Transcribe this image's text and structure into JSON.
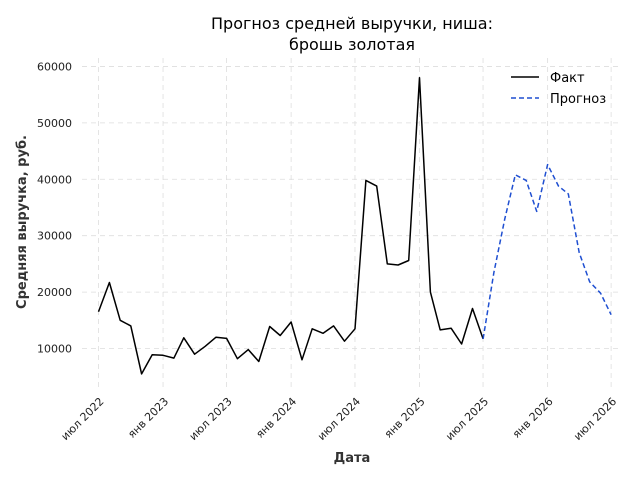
{
  "chart_data": {
    "type": "line",
    "title_lines": [
      "Прогноз средней выручки, ниша:",
      "брошь золотая"
    ],
    "xlabel": "Дата",
    "ylabel": "Средняя выручка, руб.",
    "ylim": [
      3000,
      61500
    ],
    "xlim": [
      "2022-05-15",
      "2026-08-01"
    ],
    "y_ticks": [
      10000,
      20000,
      30000,
      40000,
      50000,
      60000
    ],
    "y_tick_labels": [
      "10000",
      "20000",
      "30000",
      "40000",
      "50000",
      "60000"
    ],
    "x_ticks": [
      "2022-07-01",
      "2023-01-01",
      "2023-07-01",
      "2024-01-01",
      "2024-07-01",
      "2025-01-01",
      "2025-07-01",
      "2026-01-01",
      "2026-07-01"
    ],
    "x_tick_labels": [
      "июл 2022",
      "янв 2023",
      "июл 2023",
      "янв 2024",
      "июл 2024",
      "янв 2025",
      "июл 2025",
      "янв 2026",
      "июл 2026"
    ],
    "grid": true,
    "legend": "top-right",
    "series": [
      {
        "name": "Факт",
        "color": "#000000",
        "style": "solid",
        "x": [
          "2022-07-01",
          "2022-08-01",
          "2022-09-01",
          "2022-10-01",
          "2022-11-01",
          "2022-12-01",
          "2023-01-01",
          "2023-02-01",
          "2023-03-01",
          "2023-04-01",
          "2023-05-01",
          "2023-06-01",
          "2023-07-01",
          "2023-08-01",
          "2023-09-01",
          "2023-10-01",
          "2023-11-01",
          "2023-12-01",
          "2024-01-01",
          "2024-02-01",
          "2024-03-01",
          "2024-04-01",
          "2024-05-01",
          "2024-06-01",
          "2024-07-01",
          "2024-08-01",
          "2024-09-01",
          "2024-10-01",
          "2024-11-01",
          "2024-12-01",
          "2025-01-01",
          "2025-02-01",
          "2025-03-01",
          "2025-04-01",
          "2025-05-01",
          "2025-06-01",
          "2025-07-01"
        ],
        "y": [
          16500,
          21700,
          15000,
          14000,
          5500,
          8900,
          8800,
          8300,
          11900,
          9000,
          10400,
          12000,
          11800,
          8200,
          9800,
          7700,
          13900,
          12300,
          14700,
          8000,
          13500,
          12700,
          14000,
          11300,
          13500,
          39800,
          38800,
          25000,
          24800,
          25600,
          58000,
          20000,
          13300,
          13600,
          10800,
          17100,
          11700
        ]
      },
      {
        "name": "Прогноз",
        "color": "#1f4fd1",
        "style": "dashed",
        "x": [
          "2025-07-01",
          "2025-08-01",
          "2025-09-01",
          "2025-10-01",
          "2025-11-01",
          "2025-12-01",
          "2026-01-01",
          "2026-02-01",
          "2026-03-01",
          "2026-04-01",
          "2026-05-01",
          "2026-06-01",
          "2026-07-01"
        ],
        "y": [
          11700,
          23500,
          33000,
          40800,
          39800,
          34300,
          42600,
          38800,
          37400,
          27000,
          21800,
          19800,
          16000
        ]
      }
    ]
  }
}
